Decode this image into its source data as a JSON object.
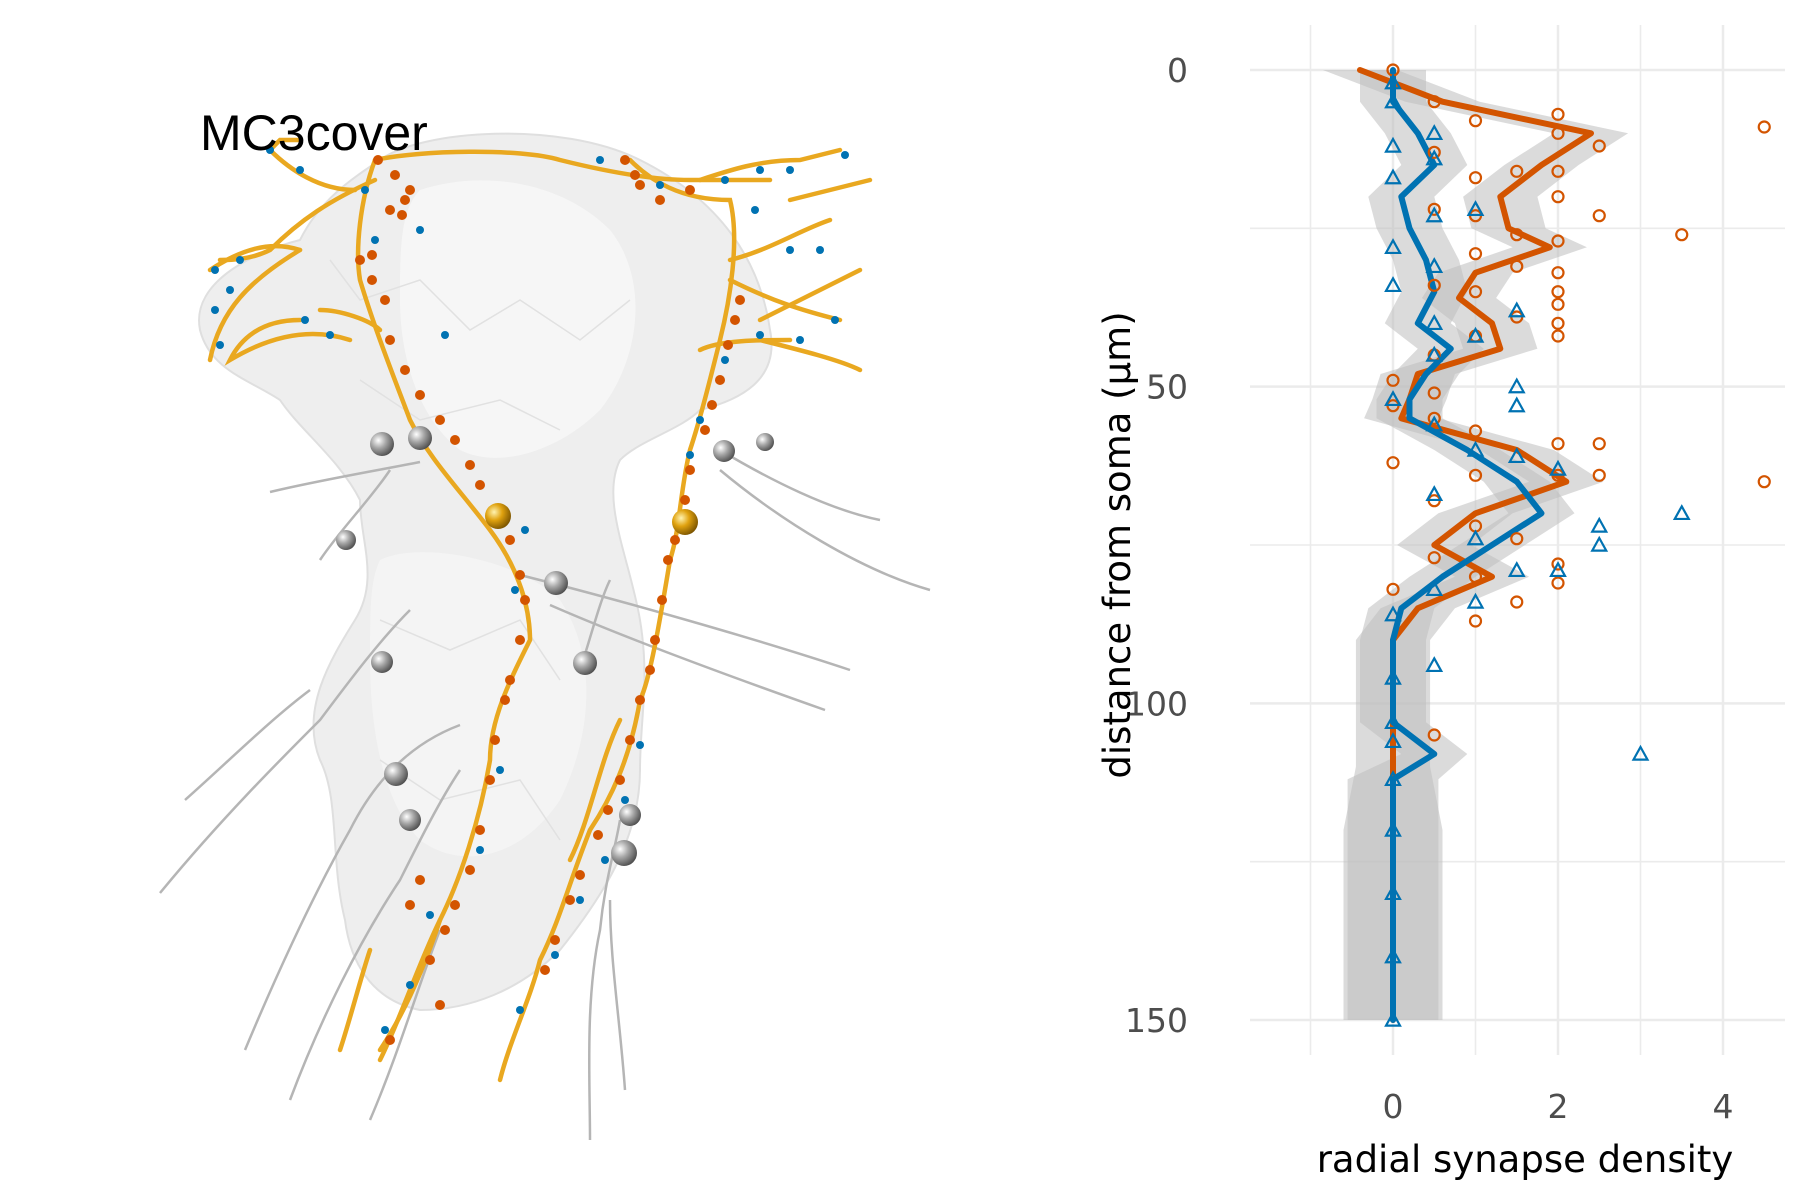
{
  "panel_left": {
    "label": "MC3cover",
    "colors": {
      "dendrite": "#e9a820",
      "output_synapse": "#d35400",
      "input_synapse": "#0072b2",
      "soma_marker": "#d4a017",
      "neighbor_marker": "#8c8c8c",
      "neighbor_trace": "#b5b5b5",
      "surface": "#e6e6e6"
    }
  },
  "chart_data": {
    "type": "line",
    "xlabel": "radial synapse density",
    "ylabel": "distance from soma (μm)",
    "xlim": [
      -1.5,
      4.7
    ],
    "ylim": [
      0,
      155
    ],
    "y_reversed": true,
    "x_ticks": [
      0,
      2,
      4
    ],
    "y_ticks": [
      0,
      50,
      100,
      150
    ],
    "grid": true,
    "band_color": "#bdbdbd",
    "series": [
      {
        "color": "#d35400",
        "marker": "circle",
        "y": [
          0,
          5,
          10,
          15,
          20,
          25,
          28,
          32,
          36,
          40,
          44,
          48,
          52,
          55,
          60,
          65,
          70,
          75,
          80,
          85,
          90,
          95,
          100,
          105,
          110,
          120,
          130,
          140,
          150
        ],
        "values": [
          -0.4,
          0.6,
          2.4,
          1.8,
          1.3,
          1.4,
          1.9,
          1.0,
          0.8,
          1.2,
          1.3,
          0.3,
          0.2,
          0.1,
          1.5,
          2.1,
          1.0,
          0.5,
          1.2,
          0.3,
          0.0,
          0.0,
          0.0,
          0.0,
          0.0,
          0.0,
          0.0,
          0.0,
          0.0
        ],
        "points": [
          [
            0,
            0
          ],
          [
            0.5,
            5
          ],
          [
            1,
            8
          ],
          [
            2,
            7
          ],
          [
            2,
            10
          ],
          [
            2.5,
            12
          ],
          [
            4.5,
            9
          ],
          [
            0.5,
            13
          ],
          [
            1,
            17
          ],
          [
            1.5,
            16
          ],
          [
            2,
            16
          ],
          [
            2,
            20
          ],
          [
            0.5,
            22
          ],
          [
            1,
            23
          ],
          [
            2.5,
            23
          ],
          [
            1.5,
            26
          ],
          [
            2,
            27
          ],
          [
            3.5,
            26
          ],
          [
            1,
            29
          ],
          [
            1.5,
            31
          ],
          [
            2,
            32
          ],
          [
            0.5,
            34
          ],
          [
            1,
            35
          ],
          [
            2,
            35
          ],
          [
            2,
            37
          ],
          [
            1.5,
            39
          ],
          [
            2,
            40
          ],
          [
            1,
            42
          ],
          [
            2,
            42
          ],
          [
            0.5,
            45
          ],
          [
            0,
            49
          ],
          [
            0.5,
            51
          ],
          [
            0,
            53
          ],
          [
            0.5,
            55
          ],
          [
            1,
            57
          ],
          [
            2,
            59
          ],
          [
            2.5,
            59
          ],
          [
            0,
            62
          ],
          [
            1,
            64
          ],
          [
            2,
            64
          ],
          [
            2.5,
            64
          ],
          [
            4.5,
            65
          ],
          [
            0.5,
            68
          ],
          [
            1,
            72
          ],
          [
            1.5,
            74
          ],
          [
            0.5,
            77
          ],
          [
            2,
            78
          ],
          [
            1,
            80
          ],
          [
            2,
            81
          ],
          [
            0,
            82
          ],
          [
            1.5,
            84
          ],
          [
            1,
            87
          ],
          [
            0.5,
            105
          ]
        ]
      },
      {
        "color": "#0072b2",
        "marker": "triangle",
        "y": [
          0,
          5,
          10,
          15,
          20,
          25,
          30,
          35,
          40,
          44,
          48,
          52,
          55,
          60,
          65,
          70,
          75,
          80,
          85,
          90,
          95,
          100,
          103,
          108,
          112,
          120,
          130,
          140,
          150
        ],
        "values": [
          0.0,
          0.0,
          0.3,
          0.5,
          0.1,
          0.2,
          0.4,
          0.5,
          0.3,
          0.7,
          0.4,
          0.2,
          0.2,
          0.9,
          1.5,
          1.8,
          1.2,
          0.6,
          0.1,
          0.0,
          0.0,
          0.0,
          0.0,
          0.5,
          0.0,
          0.0,
          0.0,
          0.0,
          0.0
        ],
        "points": [
          [
            0,
            2
          ],
          [
            0,
            5
          ],
          [
            0.5,
            10
          ],
          [
            0,
            12
          ],
          [
            0.5,
            14
          ],
          [
            0,
            17
          ],
          [
            1,
            22
          ],
          [
            0.5,
            23
          ],
          [
            0,
            28
          ],
          [
            0.5,
            31
          ],
          [
            0,
            34
          ],
          [
            1.5,
            38
          ],
          [
            0.5,
            40
          ],
          [
            1,
            42
          ],
          [
            0.5,
            45
          ],
          [
            1.5,
            50
          ],
          [
            0,
            52
          ],
          [
            1.5,
            53
          ],
          [
            0.5,
            56
          ],
          [
            1,
            60
          ],
          [
            1.5,
            61
          ],
          [
            2,
            63
          ],
          [
            0.5,
            67
          ],
          [
            2.5,
            72
          ],
          [
            3.5,
            70
          ],
          [
            2.5,
            75
          ],
          [
            1,
            74
          ],
          [
            1.5,
            79
          ],
          [
            2,
            79
          ],
          [
            0.5,
            82
          ],
          [
            1,
            84
          ],
          [
            0,
            86
          ],
          [
            0.5,
            94
          ],
          [
            0,
            96
          ],
          [
            0,
            103
          ],
          [
            0,
            106
          ],
          [
            3,
            108
          ],
          [
            0,
            112
          ],
          [
            0,
            120
          ],
          [
            0,
            130
          ],
          [
            0,
            140
          ],
          [
            0,
            150
          ]
        ]
      }
    ]
  }
}
